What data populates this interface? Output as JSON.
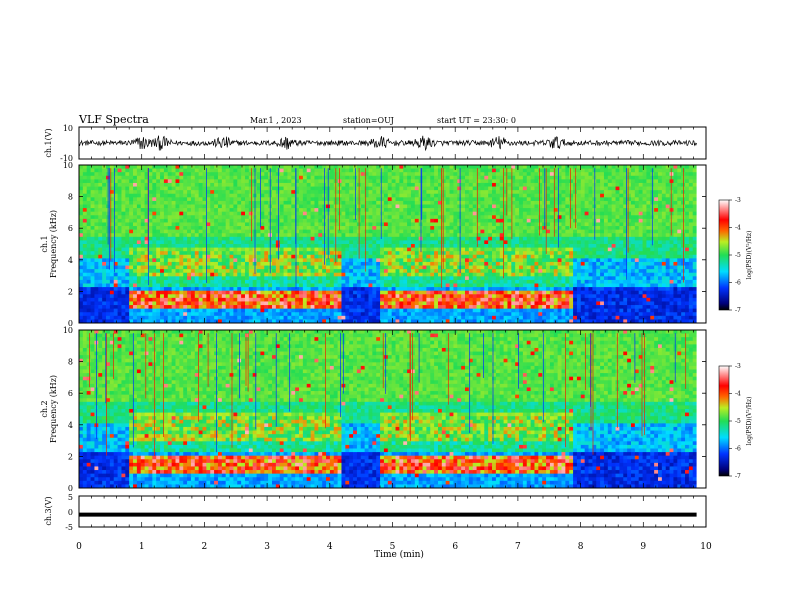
{
  "header": {
    "title": "VLF Spectra",
    "date": "Mar.1 , 2023",
    "station": "station=OUJ",
    "start": "start UT = 23:30: 0"
  },
  "chart_data": [
    {
      "type": "line",
      "panel": "waveform-ch1",
      "ylabel": "ch.1(V)",
      "ylim": [
        -10,
        10
      ],
      "yticks": [
        "10",
        "-10"
      ],
      "xlim": [
        0,
        10
      ],
      "description_values": "bipolar noise waveform, amplitude ~ +/-2 V with bursts to ~ +/-5 V around 1.3, 2.3, 3.3, 5.5, 6.7 min; record ends at 9.85 min",
      "bursts_min": [
        1.0,
        1.3,
        2.3,
        3.3,
        4.8,
        5.5,
        6.7,
        7.6
      ]
    },
    {
      "type": "heatmap",
      "panel": "spectrogram-ch1",
      "ylabel_top": "ch.1",
      "ylabel": "Frequency (kHz)",
      "ylim": [
        0,
        10
      ],
      "yticks": [
        "0",
        "2",
        "4",
        "6",
        "8",
        "10"
      ],
      "xlim": [
        0,
        10
      ],
      "colorbar": {
        "label": "log(PSD)(V²/Hz)",
        "range": [
          -7,
          -3
        ],
        "ticks": [
          "-3",
          "-4",
          "-5",
          "-6",
          "-7"
        ]
      },
      "features": {
        "intense_band_khz": [
          0.8,
          2.0
        ],
        "intense_segments_min": [
          [
            0.8,
            4.2
          ],
          [
            4.8,
            7.9
          ]
        ],
        "quiet_segments_min": [
          [
            4.2,
            4.8
          ],
          [
            7.9,
            9.85
          ]
        ],
        "upper_band_khz": [
          3.0,
          4.6
        ]
      }
    },
    {
      "type": "heatmap",
      "panel": "spectrogram-ch2",
      "ylabel_top": "ch.2",
      "ylabel": "Frequency (kHz)",
      "ylim": [
        0,
        10
      ],
      "yticks": [
        "0",
        "2",
        "4",
        "6",
        "8",
        "10"
      ],
      "xlim": [
        0,
        10
      ],
      "colorbar": {
        "label": "log(PSD)(V²/Hz)",
        "range": [
          -7,
          -3
        ],
        "ticks": [
          "-3",
          "-4",
          "-5",
          "-6",
          "-7"
        ]
      },
      "features": {
        "intense_band_khz": [
          0.8,
          2.0
        ],
        "intense_segments_min": [
          [
            0.8,
            4.2
          ],
          [
            4.8,
            7.9
          ]
        ],
        "quiet_segments_min": [
          [
            4.2,
            4.8
          ],
          [
            7.9,
            9.85
          ]
        ],
        "upper_band_khz": [
          3.0,
          4.6
        ]
      }
    },
    {
      "type": "line",
      "panel": "waveform-ch3",
      "ylabel": "ch.3(V)",
      "ylim": [
        -5,
        5
      ],
      "yticks": [
        "5",
        "0",
        "-5"
      ],
      "xlim": [
        0,
        10
      ],
      "constant_value": -1,
      "xlabel": "Time (min)",
      "xticks": [
        "0",
        "1",
        "2",
        "3",
        "4",
        "5",
        "6",
        "7",
        "8",
        "9",
        "10"
      ]
    }
  ]
}
